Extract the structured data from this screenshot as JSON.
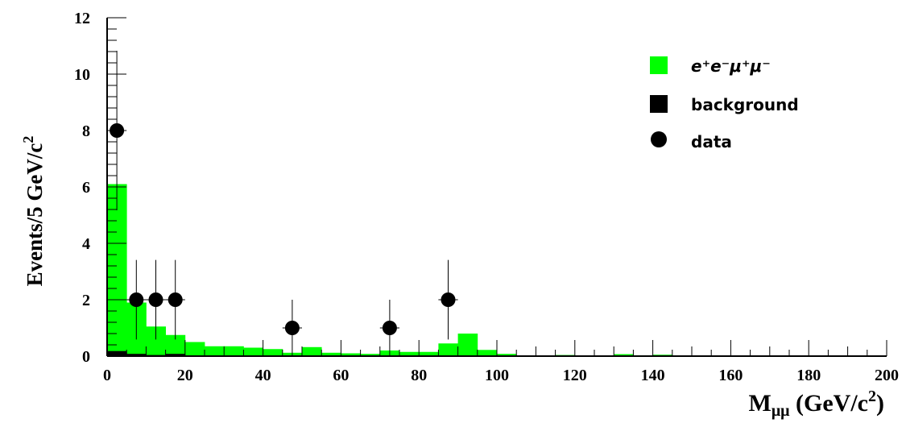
{
  "chart_data": {
    "type": "bar",
    "ylabel": "Events/5 GeV/c",
    "ylabel_sup": "2",
    "xlabel_main": "M",
    "xlabel_sub": "μμ",
    "xlabel_units": " (GeV/c",
    "xlabel_sup": "2",
    "xlabel_close": ")",
    "xlim": [
      0,
      200
    ],
    "ylim": [
      0,
      12
    ],
    "xticks": [
      0,
      20,
      40,
      60,
      80,
      100,
      120,
      140,
      160,
      180,
      200
    ],
    "yticks": [
      0,
      2,
      4,
      6,
      8,
      10,
      12
    ],
    "bin_width": 5,
    "series": [
      {
        "name": "e⁺e⁻μ⁺μ⁻",
        "style": "filled",
        "color": "#00ff00",
        "values": [
          6.1,
          1.9,
          1.05,
          0.75,
          0.5,
          0.35,
          0.35,
          0.3,
          0.25,
          0.12,
          0.32,
          0.12,
          0.1,
          0.08,
          0.2,
          0.15,
          0.15,
          0.45,
          0.8,
          0.22,
          0.08,
          0.02,
          0.02,
          0.04,
          0.02,
          0.02,
          0.07,
          0.03,
          0.05,
          0.02,
          0.01,
          0.01,
          0.01,
          0.01,
          0.01,
          0.01,
          0.01,
          0.01,
          0.01,
          0.01
        ]
      },
      {
        "name": "background",
        "style": "filled",
        "color": "#000000",
        "values": [
          0.18,
          0.08,
          0.04,
          0.08,
          0.02,
          0.01,
          0.01,
          0.01,
          0.01,
          0.01,
          0.01,
          0.01,
          0.01,
          0.02,
          0.02,
          0.02,
          0.01,
          0.01,
          0.01,
          0.01,
          0,
          0,
          0,
          0,
          0,
          0,
          0,
          0,
          0,
          0,
          0,
          0,
          0,
          0,
          0,
          0,
          0,
          0,
          0,
          0
        ]
      }
    ],
    "data_points": {
      "name": "data",
      "color": "#000000",
      "points": [
        {
          "x": 2.5,
          "y": 8,
          "err_lo": 2.83,
          "err_hi": 2.83
        },
        {
          "x": 7.5,
          "y": 2,
          "err_lo": 1.41,
          "err_hi": 1.41
        },
        {
          "x": 12.5,
          "y": 2,
          "err_lo": 1.41,
          "err_hi": 1.41
        },
        {
          "x": 17.5,
          "y": 2,
          "err_lo": 1.41,
          "err_hi": 1.41
        },
        {
          "x": 47.5,
          "y": 1,
          "err_lo": 1,
          "err_hi": 1
        },
        {
          "x": 72.5,
          "y": 1,
          "err_lo": 1,
          "err_hi": 1
        },
        {
          "x": 87.5,
          "y": 2,
          "err_lo": 1.41,
          "err_hi": 1.41
        }
      ]
    },
    "legend": {
      "position": "top-right",
      "entries": [
        {
          "label": "e⁺e⁻μ⁺μ⁻",
          "marker": "green-square"
        },
        {
          "label": "background",
          "marker": "black-square"
        },
        {
          "label": "data",
          "marker": "black-circle"
        }
      ]
    }
  }
}
